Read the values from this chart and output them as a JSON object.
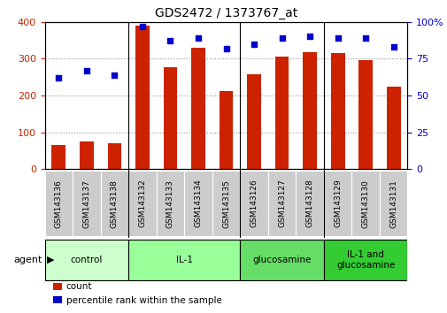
{
  "title": "GDS2472 / 1373767_at",
  "samples": [
    "GSM143136",
    "GSM143137",
    "GSM143138",
    "GSM143132",
    "GSM143133",
    "GSM143134",
    "GSM143135",
    "GSM143126",
    "GSM143127",
    "GSM143128",
    "GSM143129",
    "GSM143130",
    "GSM143131"
  ],
  "counts": [
    65,
    75,
    70,
    390,
    278,
    330,
    212,
    258,
    305,
    318,
    315,
    295,
    225
  ],
  "percentile_ranks": [
    62,
    67,
    64,
    97,
    87,
    89,
    82,
    85,
    89,
    90,
    89,
    89,
    83
  ],
  "groups": [
    {
      "label": "control",
      "start": 0,
      "end": 3,
      "color": "#ccffcc"
    },
    {
      "label": "IL-1",
      "start": 3,
      "end": 7,
      "color": "#99ff99"
    },
    {
      "label": "glucosamine",
      "start": 7,
      "end": 10,
      "color": "#66dd66"
    },
    {
      "label": "IL-1 and\nglucosamine",
      "start": 10,
      "end": 13,
      "color": "#33cc33"
    }
  ],
  "bar_color": "#cc2200",
  "dot_color": "#0000cc",
  "bar_width": 0.5,
  "ylim_left": [
    0,
    400
  ],
  "ylim_right": [
    0,
    100
  ],
  "yticks_left": [
    0,
    100,
    200,
    300,
    400
  ],
  "yticks_right": [
    0,
    25,
    50,
    75,
    100
  ],
  "grid_color": "#999999",
  "bg_color": "#ffffff",
  "tick_label_area_color": "#cccccc",
  "agent_label": "agent",
  "legend_count_label": "count",
  "legend_pct_label": "percentile rank within the sample"
}
